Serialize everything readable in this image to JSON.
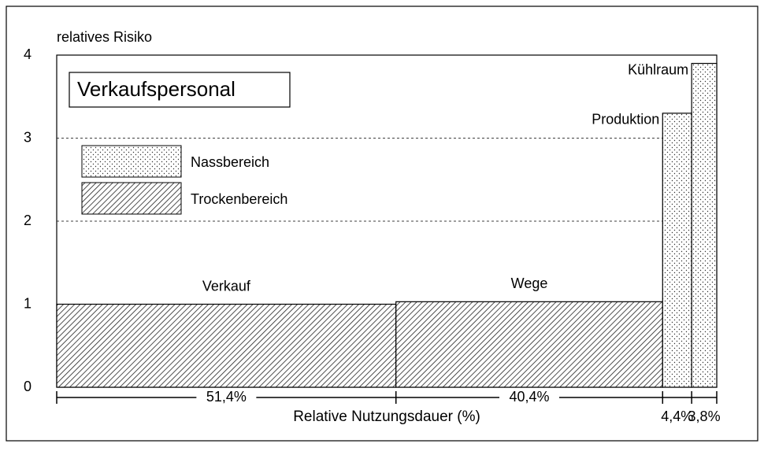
{
  "chart_data": {
    "type": "variable-width-bar",
    "title": "Verkaufspersonal",
    "y_label": "relatives Risiko",
    "x_label": "Relative Nutzungsdauer (%)",
    "categories": [
      "Verkauf",
      "Wege",
      "Produktion",
      "Kühlraum"
    ],
    "widths": [
      51.4,
      40.4,
      4.4,
      3.8
    ],
    "width_labels": [
      "51,4%",
      "40,4%",
      "4,4%",
      "3,8%"
    ],
    "series": [
      {
        "name": "Nassbereich",
        "pattern": "dots",
        "values": [
          null,
          null,
          3.3,
          3.9
        ]
      },
      {
        "name": "Trockenbereich",
        "pattern": "hatch",
        "values": [
          1.0,
          1.03,
          null,
          null
        ]
      }
    ],
    "xlim": [
      0,
      100
    ],
    "ylim": [
      0,
      4
    ],
    "yticks": [
      0,
      1,
      2,
      3,
      4
    ],
    "grid": true
  }
}
